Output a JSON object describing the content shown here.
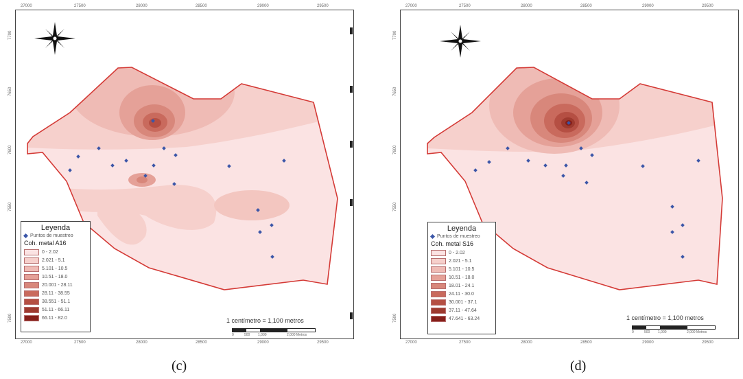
{
  "panels": [
    {
      "id": "c",
      "caption": "(c)",
      "legend": {
        "title": "Leyenda",
        "point_label": "Puntos de muestreo",
        "subtitle": "Coh. metal A16",
        "classes": [
          {
            "label": "0 - 2.02",
            "color": "#fbe3e3"
          },
          {
            "label": "2.021 - 5.1",
            "color": "#f6d0cc"
          },
          {
            "label": "5.101 - 10.5",
            "color": "#efbbb5"
          },
          {
            "label": "10.51 - 18.0",
            "color": "#e5a198"
          },
          {
            "label": "20.001 - 28.11",
            "color": "#d8877b"
          },
          {
            "label": "28.11 - 38.55",
            "color": "#c96a5d"
          },
          {
            "label": "38.551 - 51.1",
            "color": "#b54f43"
          },
          {
            "label": "51.11 - 66.11",
            "color": "#9e3a2f"
          },
          {
            "label": "66.11 - 82.0",
            "color": "#861f1a"
          }
        ]
      },
      "scale": {
        "text": "1 centímetro = 1,100 metros",
        "labels": [
          "0",
          "500",
          "1,000",
          "2,000 Metros"
        ]
      },
      "ticks_x": [
        "27000",
        "27500",
        "28000",
        "28500",
        "29000",
        "29500"
      ],
      "ticks_y": [
        "7700",
        "7650",
        "7600",
        "7550",
        "7500"
      ]
    },
    {
      "id": "d",
      "caption": "(d)",
      "legend": {
        "title": "Leyenda",
        "point_label": "Puntos de muestreo",
        "subtitle": "Coh. metal S16",
        "classes": [
          {
            "label": "0 - 2.02",
            "color": "#fbe3e3"
          },
          {
            "label": "2.021 - 5.1",
            "color": "#f6d0cc"
          },
          {
            "label": "5.101 - 10.5",
            "color": "#efbbb5"
          },
          {
            "label": "10.51 - 18.0",
            "color": "#e5a198"
          },
          {
            "label": "18.01 - 24.1",
            "color": "#d8877b"
          },
          {
            "label": "24.11 - 30.0",
            "color": "#c96a5d"
          },
          {
            "label": "30.001 - 37.1",
            "color": "#b54f43"
          },
          {
            "label": "37.11 - 47.64",
            "color": "#9e3a2f"
          },
          {
            "label": "47.641 - 63.24",
            "color": "#861f1a"
          }
        ]
      },
      "scale": {
        "text": "1 centímetro = 1,100 metros",
        "labels": [
          "0",
          "500",
          "1,000",
          "2,000 Metros"
        ]
      },
      "ticks_x": [
        "27000",
        "27500",
        "28000",
        "28500",
        "29000",
        "29500"
      ],
      "ticks_y": [
        "7700",
        "7650",
        "7600",
        "7550",
        "7500"
      ]
    }
  ],
  "colors": {
    "boundary": "#d43a36",
    "point": "#3b56a8",
    "base": "#fbe3e3"
  },
  "icons": {
    "north_arrow": "compass-rose-icon"
  }
}
